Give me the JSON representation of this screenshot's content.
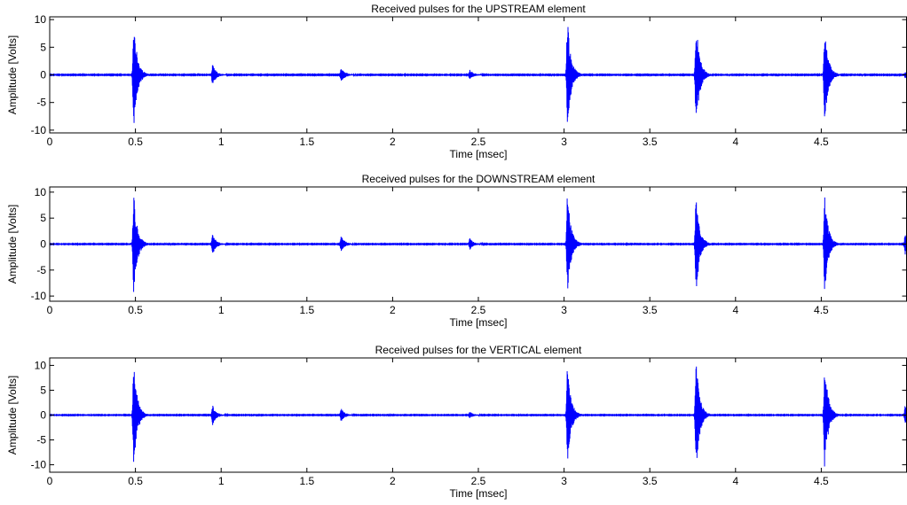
{
  "figure": {
    "line_color": "#0000ff",
    "axis_color": "#000000",
    "background": "#ffffff"
  },
  "chart_data": [
    {
      "type": "line",
      "title": "Received pulses for the UPSTREAM element",
      "xlabel": "Time [msec]",
      "ylabel": "Amplitude [Volts]",
      "xlim": [
        0,
        5
      ],
      "ylim": [
        -10.5,
        10.5
      ],
      "xticks": [
        0,
        0.5,
        1,
        1.5,
        2,
        2.5,
        3,
        3.5,
        4,
        4.5
      ],
      "yticks": [
        -10,
        -5,
        0,
        5,
        10
      ],
      "grid": false,
      "pulses": [
        {
          "t": 0.49,
          "amp": 10
        },
        {
          "t": 0.95,
          "amp": 1.8
        },
        {
          "t": 1.7,
          "amp": 1.4
        },
        {
          "t": 2.45,
          "amp": 0.9
        },
        {
          "t": 3.02,
          "amp": 10
        },
        {
          "t": 3.77,
          "amp": 10
        },
        {
          "t": 4.52,
          "amp": 8.8
        },
        {
          "t": 4.99,
          "amp": 0.6
        }
      ]
    },
    {
      "type": "line",
      "title": "Received pulses for the DOWNSTREAM element",
      "xlabel": "Time [msec]",
      "ylabel": "Amplitude [Volts]",
      "xlim": [
        0,
        5
      ],
      "ylim": [
        -11,
        11
      ],
      "xticks": [
        0,
        0.5,
        1,
        1.5,
        2,
        2.5,
        3,
        3.5,
        4,
        4.5
      ],
      "yticks": [
        -10,
        -5,
        0,
        5,
        10
      ],
      "grid": false,
      "pulses": [
        {
          "t": 0.49,
          "amp": 10
        },
        {
          "t": 0.95,
          "amp": 2
        },
        {
          "t": 1.7,
          "amp": 1.6
        },
        {
          "t": 2.45,
          "amp": 1.1
        },
        {
          "t": 3.02,
          "amp": 10
        },
        {
          "t": 3.77,
          "amp": 10
        },
        {
          "t": 4.52,
          "amp": 9.5
        },
        {
          "t": 4.99,
          "amp": 2
        }
      ]
    },
    {
      "type": "line",
      "title": "Received pulses for the VERTICAL element",
      "xlabel": "Time [msec]",
      "ylabel": "Amplitude [Volts]",
      "xlim": [
        0,
        5
      ],
      "ylim": [
        -11.5,
        11.5
      ],
      "xticks": [
        0,
        0.5,
        1,
        1.5,
        2,
        2.5,
        3,
        3.5,
        4,
        4.5
      ],
      "yticks": [
        -10,
        -5,
        0,
        5,
        10
      ],
      "grid": false,
      "pulses": [
        {
          "t": 0.49,
          "amp": 11
        },
        {
          "t": 0.95,
          "amp": 2
        },
        {
          "t": 1.7,
          "amp": 1.3
        },
        {
          "t": 2.45,
          "amp": 0.6
        },
        {
          "t": 3.02,
          "amp": 10
        },
        {
          "t": 3.77,
          "amp": 11.5
        },
        {
          "t": 4.52,
          "amp": 11
        },
        {
          "t": 4.99,
          "amp": 2
        }
      ]
    }
  ]
}
